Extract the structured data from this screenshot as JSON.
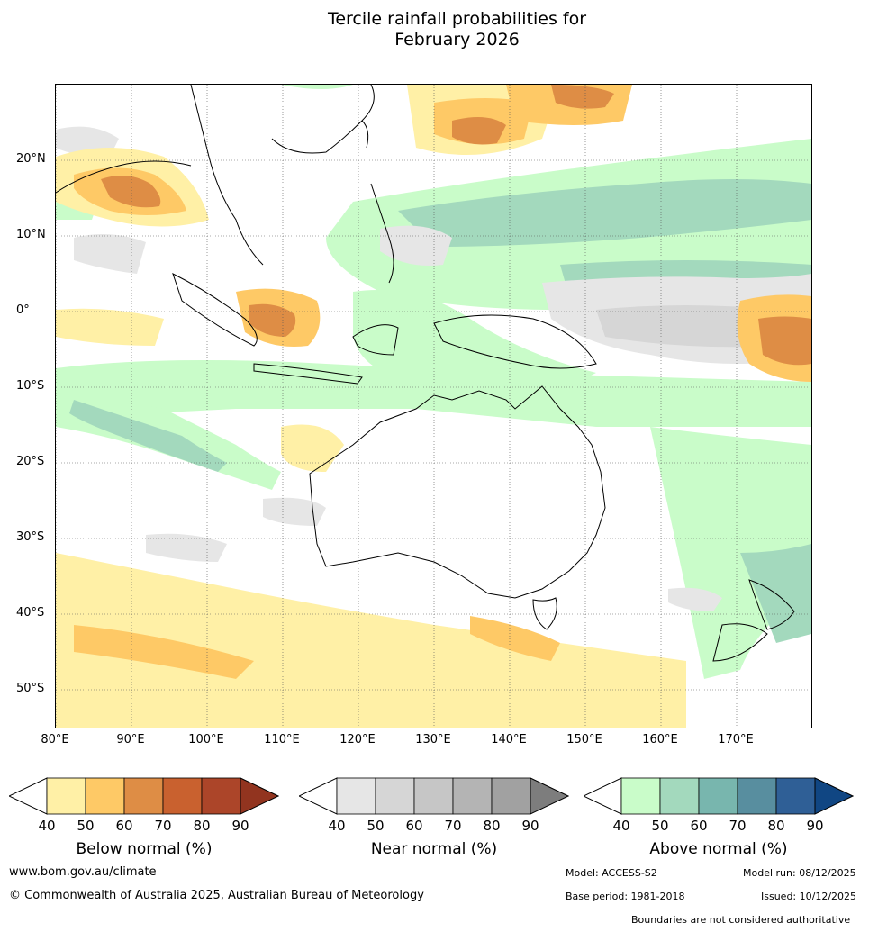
{
  "title_line1": "Tercile rainfall probabilities for",
  "title_line2": "February 2026",
  "map": {
    "lat_labels": [
      "20°N",
      "10°N",
      "0°",
      "10°S",
      "20°S",
      "30°S",
      "40°S",
      "50°S"
    ],
    "lon_labels": [
      "80°E",
      "90°E",
      "100°E",
      "110°E",
      "120°E",
      "130°E",
      "140°E",
      "150°E",
      "160°E",
      "170°E"
    ]
  },
  "legends": [
    {
      "label": "Below normal (%)",
      "ticks": [
        "40",
        "50",
        "60",
        "70",
        "80",
        "90"
      ],
      "colors": [
        "#fff0a6",
        "#fec966",
        "#de8d45",
        "#c9612f",
        "#ac4529",
        "#92341f"
      ]
    },
    {
      "label": "Near normal (%)",
      "ticks": [
        "40",
        "50",
        "60",
        "70",
        "80",
        "90"
      ],
      "colors": [
        "#e6e6e6",
        "#d6d6d6",
        "#c6c6c6",
        "#b4b4b4",
        "#a1a1a1",
        "#7d7d7d"
      ]
    },
    {
      "label": "Above normal (%)",
      "ticks": [
        "40",
        "50",
        "60",
        "70",
        "80",
        "90"
      ],
      "colors": [
        "#c9fcc9",
        "#a3d9bd",
        "#78b6ae",
        "#588e9f",
        "#2f5f96",
        "#104683"
      ]
    }
  ],
  "footer": {
    "website": "www.bom.gov.au/climate",
    "copyright": "© Commonwealth of Australia 2025, Australian Bureau of Meteorology",
    "model": "Model: ACCESS-S2",
    "model_run": "Model run: 08/12/2025",
    "base_period": "Base period: 1981-2018",
    "issued": "Issued: 10/12/2025",
    "disclaimer": "Boundaries are not considered authoritative"
  }
}
